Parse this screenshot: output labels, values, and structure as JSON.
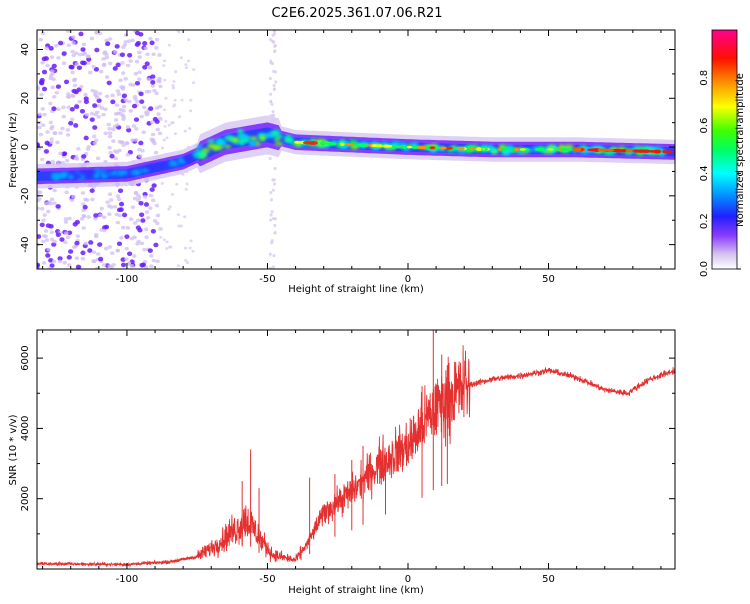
{
  "title": "C2E6.2025.361.07.06.R21",
  "chart_data": [
    {
      "type": "heatmap",
      "name": "spectrogram",
      "xlabel": "Height of straight line (km)",
      "ylabel": "Frequency (Hz)",
      "xlim": [
        -132,
        95
      ],
      "ylim": [
        -50,
        48
      ],
      "xticks": [
        -100,
        -50,
        0,
        50
      ],
      "yticks": [
        -40,
        -20,
        0,
        20,
        40
      ],
      "xtick_labels": [
        "-100",
        "-50",
        "0",
        "50"
      ],
      "ytick_labels": [
        "-40",
        "-20",
        "0",
        "20",
        "40"
      ],
      "centerline": [
        {
          "x": -132,
          "f": -12
        },
        {
          "x": -100,
          "f": -11
        },
        {
          "x": -80,
          "f": -6
        },
        {
          "x": -65,
          "f": 2
        },
        {
          "x": -50,
          "f": 5
        },
        {
          "x": -40,
          "f": 2
        },
        {
          "x": -20,
          "f": 1
        },
        {
          "x": 0,
          "f": 0
        },
        {
          "x": 30,
          "f": -1
        },
        {
          "x": 60,
          "f": -1
        },
        {
          "x": 95,
          "f": -2
        }
      ],
      "noise_region_x": [
        -132,
        -88
      ],
      "colormap": [
        "#d8c8f0",
        "#6a1bff",
        "#0000ff",
        "#00e0ff",
        "#00ff00",
        "#ffff00",
        "#ff8000",
        "#ff0000",
        "#ff0080"
      ]
    },
    {
      "type": "colorbar",
      "name": "amplitude-colorbar",
      "label": "Normalized spectral amplitude",
      "range": [
        0,
        1
      ],
      "ticks": [
        0.0,
        0.2,
        0.4,
        0.6,
        0.8
      ],
      "tick_labels": [
        "0.0",
        "0.2",
        "0.4",
        "0.6",
        "0.8"
      ]
    },
    {
      "type": "line",
      "name": "snr-plot",
      "xlabel": "Height of straight line (km)",
      "ylabel": "SNR (10 * v/v)",
      "xlim": [
        -132,
        95
      ],
      "ylim": [
        0,
        6800
      ],
      "xticks": [
        -100,
        -50,
        0,
        50
      ],
      "yticks": [
        2000,
        4000,
        6000
      ],
      "xtick_labels": [
        "-100",
        "-50",
        "0",
        "50"
      ],
      "ytick_labels": [
        "2000",
        "4000",
        "6000"
      ],
      "color": "#e53030",
      "envelope": [
        {
          "x": -132,
          "y": 150
        },
        {
          "x": -100,
          "y": 130
        },
        {
          "x": -85,
          "y": 200
        },
        {
          "x": -75,
          "y": 350
        },
        {
          "x": -68,
          "y": 700
        },
        {
          "x": -62,
          "y": 1100
        },
        {
          "x": -57,
          "y": 1400
        },
        {
          "x": -52,
          "y": 800
        },
        {
          "x": -48,
          "y": 400
        },
        {
          "x": -40,
          "y": 250
        },
        {
          "x": -36,
          "y": 700
        },
        {
          "x": -30,
          "y": 1600
        },
        {
          "x": -20,
          "y": 2200
        },
        {
          "x": -10,
          "y": 3000
        },
        {
          "x": 0,
          "y": 3500
        },
        {
          "x": 10,
          "y": 4600
        },
        {
          "x": 20,
          "y": 5200
        },
        {
          "x": 30,
          "y": 5400
        },
        {
          "x": 40,
          "y": 5500
        },
        {
          "x": 50,
          "y": 5650
        },
        {
          "x": 60,
          "y": 5450
        },
        {
          "x": 70,
          "y": 5100
        },
        {
          "x": 78,
          "y": 5000
        },
        {
          "x": 86,
          "y": 5400
        },
        {
          "x": 95,
          "y": 5650
        }
      ],
      "spikes": [
        {
          "x": -56,
          "y": 3400
        },
        {
          "x": -59,
          "y": 2500
        },
        {
          "x": -53,
          "y": 2300
        },
        {
          "x": -35,
          "y": 2600
        },
        {
          "x": -26,
          "y": 2700
        },
        {
          "x": -20,
          "y": 3100
        },
        {
          "x": -16,
          "y": 3500
        },
        {
          "x": -8,
          "y": 3100
        },
        {
          "x": 5,
          "y": 5200
        },
        {
          "x": 9,
          "y": 6800
        },
        {
          "x": 12,
          "y": 6100
        },
        {
          "x": 14,
          "y": 5800
        }
      ]
    }
  ]
}
